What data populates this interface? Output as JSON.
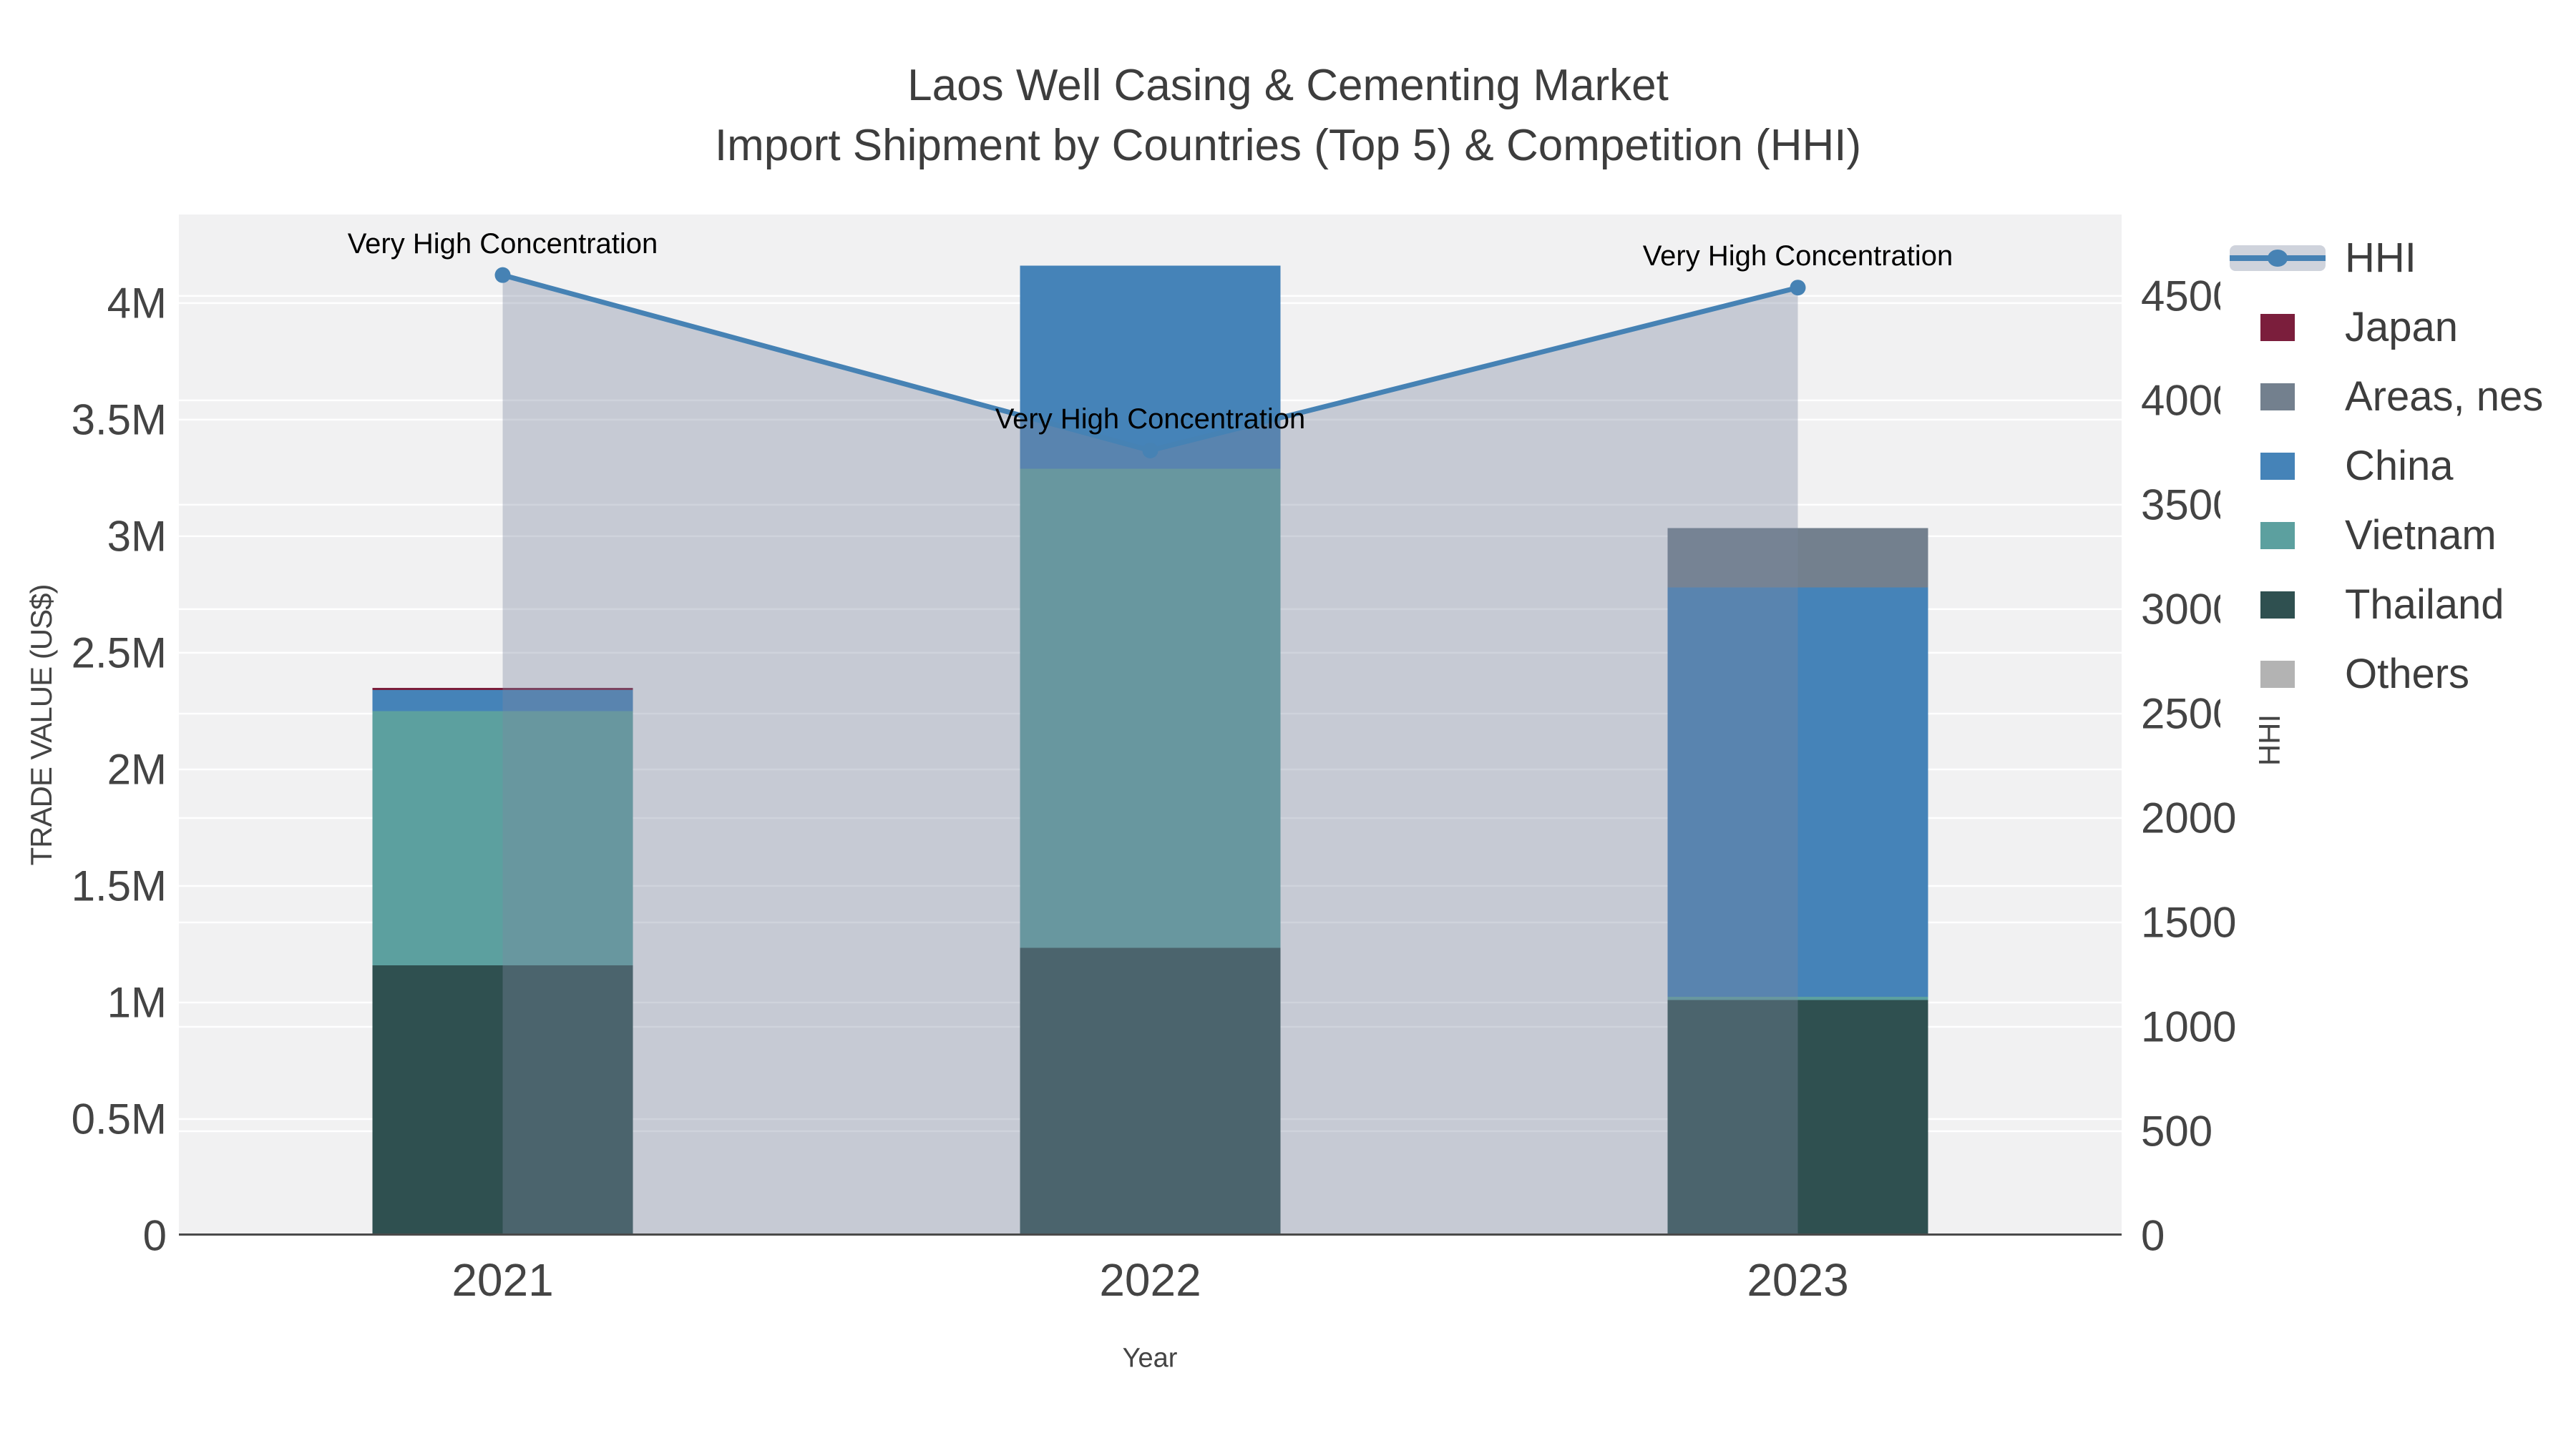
{
  "title": {
    "line1": "Laos Well Casing & Cementing Market",
    "line2": "Import Shipment by Countries (Top 5) & Competition (HHI)"
  },
  "axes": {
    "x": {
      "title": "Year",
      "categories": [
        "2021",
        "2022",
        "2023"
      ]
    },
    "y_left": {
      "title": "TRADE VALUE (US$)",
      "tick_labels": [
        "0",
        "0.5M",
        "1M",
        "1.5M",
        "2M",
        "2.5M",
        "3M",
        "3.5M",
        "4M"
      ],
      "tick_values": [
        0,
        500000,
        1000000,
        1500000,
        2000000,
        2500000,
        3000000,
        3500000,
        4000000
      ],
      "max": 4380000
    },
    "y_right": {
      "title": "HHI",
      "tick_labels": [
        "0",
        "500",
        "1000",
        "1500",
        "2000",
        "2500",
        "3000",
        "3500",
        "4000",
        "4500"
      ],
      "tick_values": [
        0,
        500,
        1000,
        1500,
        2000,
        2500,
        3000,
        3500,
        4000,
        4500
      ],
      "max": 4890
    }
  },
  "legend": {
    "items": [
      {
        "label": "HHI",
        "type": "line",
        "color": "#4682B4"
      },
      {
        "label": "Japan",
        "type": "square",
        "color": "#7B1E3C"
      },
      {
        "label": "Areas, nes",
        "type": "square",
        "color": "#73808E"
      },
      {
        "label": "China",
        "type": "square",
        "color": "#4583B8"
      },
      {
        "label": "Vietnam",
        "type": "square",
        "color": "#5CA09F"
      },
      {
        "label": "Thailand",
        "type": "square",
        "color": "#2F5050"
      },
      {
        "label": "Others",
        "type": "square",
        "color": "#B3B3B3"
      }
    ]
  },
  "chart_data": {
    "type": "bar+line",
    "title": "Laos Well Casing & Cementing Market — Import Shipment by Countries (Top 5) & Competition (HHI)",
    "categories": [
      "2021",
      "2022",
      "2023"
    ],
    "xlabel": "Year",
    "ylabel_left": "TRADE VALUE (US$)",
    "ylabel_right": "HHI",
    "y_left_range": [
      0,
      4380000
    ],
    "y_right_range": [
      0,
      4890
    ],
    "grid": true,
    "legend_position": "top-right",
    "bar_series": [
      {
        "name": "Thailand",
        "color": "#2F5050",
        "values": [
          1160000,
          1235000,
          1010000
        ]
      },
      {
        "name": "Vietnam",
        "color": "#5CA09F",
        "values": [
          1090000,
          2055000,
          15000
        ]
      },
      {
        "name": "China",
        "color": "#4583B8",
        "values": [
          90000,
          870000,
          1755000
        ]
      },
      {
        "name": "Areas, nes",
        "color": "#73808E",
        "values": [
          0,
          0,
          255000
        ]
      },
      {
        "name": "Japan",
        "color": "#7B1E3C",
        "values": [
          10000,
          0,
          0
        ]
      },
      {
        "name": "Others",
        "color": "#B3B3B3",
        "values": [
          0,
          0,
          0
        ]
      }
    ],
    "bar_totals": [
      2350000,
      4160000,
      3035000
    ],
    "line_series": {
      "name": "HHI",
      "color": "#4682B4",
      "fill_color": "rgba(125,136,160,0.37)",
      "values": [
        4600,
        3760,
        4540
      ]
    },
    "annotations": [
      {
        "index": 0,
        "text": "Very High Concentration"
      },
      {
        "index": 1,
        "text": "Very High Concentration"
      },
      {
        "index": 2,
        "text": "Very High Concentration"
      }
    ]
  }
}
